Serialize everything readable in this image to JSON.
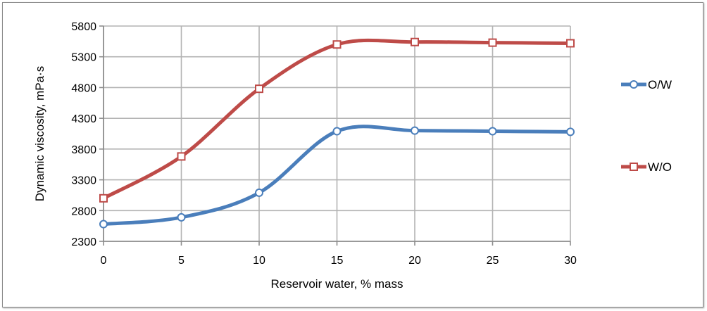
{
  "chart_data": {
    "type": "line",
    "xlabel": "Reservoir water, % mass",
    "ylabel": "Dynamic viscosity, mPa·s",
    "x": [
      0,
      5,
      10,
      15,
      20,
      25,
      30
    ],
    "xlim": [
      0,
      30
    ],
    "ylim": [
      2300,
      5800
    ],
    "yticks": [
      2300,
      2800,
      3300,
      3800,
      4300,
      4800,
      5300,
      5800
    ],
    "grid": true,
    "smooth": true,
    "legend_position": "right",
    "series": [
      {
        "name": "O/W",
        "color": "#4a7ebb",
        "marker": "circle",
        "values": [
          2580,
          2690,
          3090,
          4090,
          4100,
          4090,
          4080
        ]
      },
      {
        "name": "W/O",
        "color": "#be4b48",
        "marker": "square",
        "values": [
          3000,
          3680,
          4780,
          5500,
          5540,
          5530,
          5520
        ]
      }
    ]
  }
}
